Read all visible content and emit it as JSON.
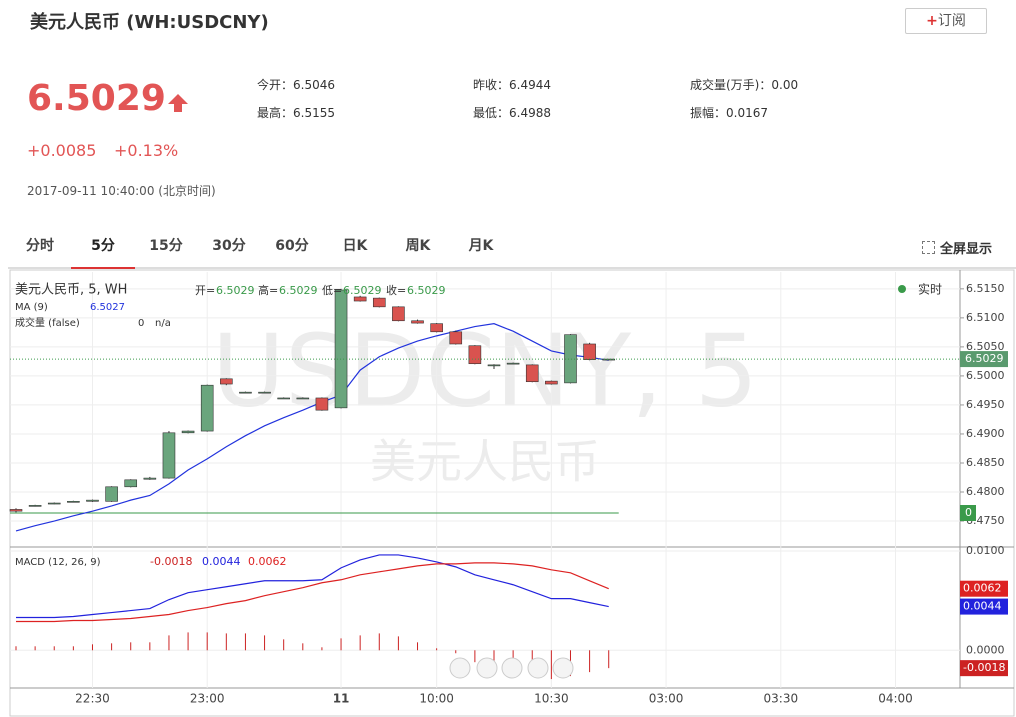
{
  "header": {
    "title": "美元人民币 (WH:USDCNY)",
    "subscribe_plus": "+",
    "subscribe": "订阅",
    "price": "6.5029",
    "change": "+0.0085",
    "change_pct": "+0.13%",
    "time": "2017-09-11 10:40:00 (北京时间)",
    "stats": [
      "今开：6.5046",
      "最高：6.5155",
      "昨收：6.4944",
      "最低：6.4988",
      "成交量(万手)：0.00",
      "振幅：0.0167"
    ]
  },
  "tabs": [
    "分时",
    "5分",
    "15分",
    "30分",
    "60分",
    "日K",
    "周K",
    "月K"
  ],
  "active_tab": "5分",
  "fullscreen": "全屏显示",
  "chart_data": [
    {
      "type": "candlestick",
      "legend_title": "美元人民币, 5, WH",
      "realtime": "实时",
      "ohlc_labels": [
        "开=",
        "高=",
        "低=",
        "收="
      ],
      "watermark": [
        "USDCNY, 5",
        "美元人民币"
      ],
      "up_color": "#6aa57d",
      "down_color": "#d9534f",
      "open": [
        6.477,
        6.4776,
        6.478,
        6.4783,
        6.4784,
        6.4784,
        6.4809,
        6.4822,
        6.4824,
        6.4902,
        6.4905,
        6.4995,
        6.4972,
        6.4972,
        6.4962,
        6.4962,
        6.4962,
        6.4945,
        6.5136,
        6.5134,
        6.5119,
        6.5095,
        6.509,
        6.5076,
        6.5052,
        6.5019,
        6.5022,
        6.5019,
        6.4991,
        6.4988,
        6.5055,
        6.5029
      ],
      "high": [
        6.4772,
        6.4778,
        6.4782,
        6.4785,
        6.4787,
        6.481,
        6.4822,
        6.4826,
        6.4905,
        6.4906,
        6.4985,
        6.4996,
        6.4973,
        6.4973,
        6.4963,
        6.4963,
        6.4963,
        6.515,
        6.5138,
        6.5135,
        6.512,
        6.5097,
        6.5091,
        6.5078,
        6.5053,
        6.502,
        6.5023,
        6.502,
        6.4992,
        6.5072,
        6.5057,
        6.5029
      ],
      "low": [
        6.4765,
        6.4775,
        6.4779,
        6.4782,
        6.4783,
        6.4783,
        6.4808,
        6.4821,
        6.4823,
        6.4901,
        6.4904,
        6.4984,
        6.4971,
        6.4971,
        6.4961,
        6.4961,
        6.494,
        6.4944,
        6.5128,
        6.5118,
        6.5094,
        6.509,
        6.5075,
        6.5054,
        6.502,
        6.5012,
        6.5021,
        6.4989,
        6.4985,
        6.4987,
        6.5027,
        6.5029
      ],
      "close": [
        6.4767,
        6.4777,
        6.4781,
        6.4784,
        6.4786,
        6.4809,
        6.4821,
        6.4824,
        6.4902,
        6.4905,
        6.4984,
        6.4986,
        6.4972,
        6.4972,
        6.4962,
        6.4962,
        6.4941,
        6.5148,
        6.5129,
        6.5119,
        6.5095,
        6.5091,
        6.5076,
        6.5055,
        6.5021,
        6.5019,
        6.5022,
        6.499,
        6.4986,
        6.5071,
        6.5028,
        6.5029
      ],
      "ma": {
        "name": "MA (9)",
        "color": "#2233dd",
        "values": [
          6.4733,
          6.4742,
          6.475,
          6.4759,
          6.4767,
          6.4776,
          6.4786,
          6.4794,
          6.4814,
          6.4838,
          6.4857,
          6.4878,
          6.4897,
          6.4914,
          6.4928,
          6.4941,
          6.4955,
          6.4967,
          6.501,
          6.5033,
          6.5048,
          6.506,
          6.5069,
          6.5077,
          6.5085,
          6.509,
          6.5077,
          6.506,
          6.5043,
          6.5036,
          6.5032,
          6.5027
        ]
      },
      "volume": {
        "name": "成交量 (false)",
        "value": 0,
        "unit": "n/a",
        "color": "#3a9a4a"
      },
      "ylim": [
        6.4707,
        6.5179
      ],
      "yticks": [
        {
          "value": 6.515,
          "label": "6.5150"
        },
        {
          "value": 6.51,
          "label": "6.5100"
        },
        {
          "value": 6.505,
          "label": "6.5050"
        },
        {
          "value": 6.5,
          "label": "6.5000"
        },
        {
          "value": 6.495,
          "label": "6.4950"
        },
        {
          "value": 6.49,
          "label": "6.4900"
        },
        {
          "value": 6.485,
          "label": "6.4850"
        },
        {
          "value": 6.48,
          "label": "6.4800"
        },
        {
          "value": 6.475,
          "label": "6.4750"
        }
      ],
      "xticks": [
        {
          "value": 4,
          "label": "22:30"
        },
        {
          "value": 10,
          "label": "23:00"
        },
        {
          "value": 17,
          "label": "11"
        },
        {
          "value": 22,
          "label": "10:00"
        },
        {
          "value": 28,
          "label": "10:30"
        },
        {
          "value": 34,
          "label": "03:00"
        },
        {
          "value": 40,
          "label": "03:30"
        },
        {
          "value": 46,
          "label": "04:00"
        }
      ],
      "grid": true
    },
    {
      "type": "macd",
      "title": "MACD (12, 26, 9)",
      "histogram": {
        "color": "#cc2222",
        "values": [
          0.0004,
          0.0004,
          0.0004,
          0.0004,
          0.0006,
          0.0007,
          0.0008,
          0.0008,
          0.0015,
          0.0018,
          0.0018,
          0.0017,
          0.0017,
          0.0015,
          0.0011,
          0.0007,
          0.0003,
          0.0012,
          0.0015,
          0.0017,
          0.0014,
          0.0008,
          0.0002,
          -0.0003,
          -0.0012,
          -0.0017,
          -0.0021,
          -0.0026,
          -0.0029,
          -0.0026,
          -0.0022,
          -0.0018
        ]
      },
      "dif": {
        "color": "#2222dd",
        "values": [
          0.0033,
          0.0033,
          0.0033,
          0.0034,
          0.0036,
          0.0038,
          0.004,
          0.0042,
          0.0051,
          0.0058,
          0.0061,
          0.0064,
          0.0067,
          0.007,
          0.007,
          0.007,
          0.0071,
          0.0083,
          0.0091,
          0.0096,
          0.0096,
          0.0093,
          0.0089,
          0.0084,
          0.0076,
          0.0071,
          0.0066,
          0.0059,
          0.0052,
          0.0052,
          0.0048,
          0.0044
        ]
      },
      "dea": {
        "color": "#dd2222",
        "values": [
          0.0029,
          0.0029,
          0.0029,
          0.003,
          0.003,
          0.0031,
          0.0032,
          0.0034,
          0.0036,
          0.004,
          0.0043,
          0.0047,
          0.005,
          0.0055,
          0.0059,
          0.0063,
          0.0068,
          0.0071,
          0.0076,
          0.0079,
          0.0082,
          0.0085,
          0.0087,
          0.0087,
          0.0088,
          0.0088,
          0.0087,
          0.0085,
          0.0081,
          0.0078,
          0.007,
          0.0062
        ]
      },
      "ylim": [
        -0.0038,
        0.0103
      ],
      "yticks": [
        {
          "value": 0.01,
          "label": "0.0100"
        },
        {
          "value": 0,
          "label": "0.0000"
        }
      ]
    }
  ]
}
